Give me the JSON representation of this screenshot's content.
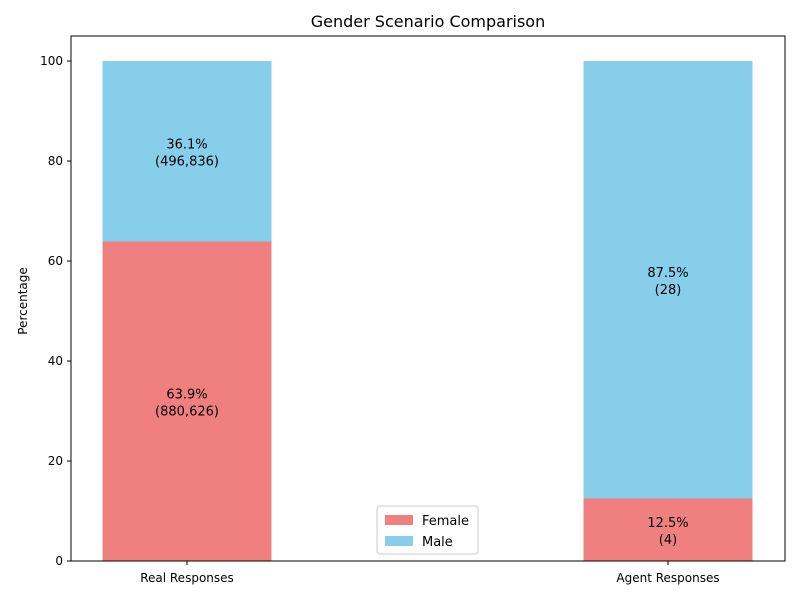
{
  "chart_data": {
    "type": "bar",
    "stacked": true,
    "title": "Gender Scenario Comparison",
    "xlabel": "",
    "ylabel": "Percentage",
    "ylim": [
      0,
      105
    ],
    "yticks": [
      0,
      20,
      40,
      60,
      80,
      100
    ],
    "categories": [
      "Real Responses",
      "Agent Responses"
    ],
    "series": [
      {
        "name": "Female",
        "color": "#f08080",
        "values": [
          63.9,
          12.5
        ],
        "labels": [
          [
            "63.9%",
            "(880,626)"
          ],
          [
            "12.5%",
            "(4)"
          ]
        ]
      },
      {
        "name": "Male",
        "color": "#87ceeb",
        "values": [
          36.1,
          87.5
        ],
        "labels": [
          [
            "36.1%",
            "(496,836)"
          ],
          [
            "87.5%",
            "(28)"
          ]
        ]
      }
    ],
    "legend": {
      "position": "bottom-center",
      "entries": [
        "Female",
        "Male"
      ]
    },
    "grid": false
  }
}
